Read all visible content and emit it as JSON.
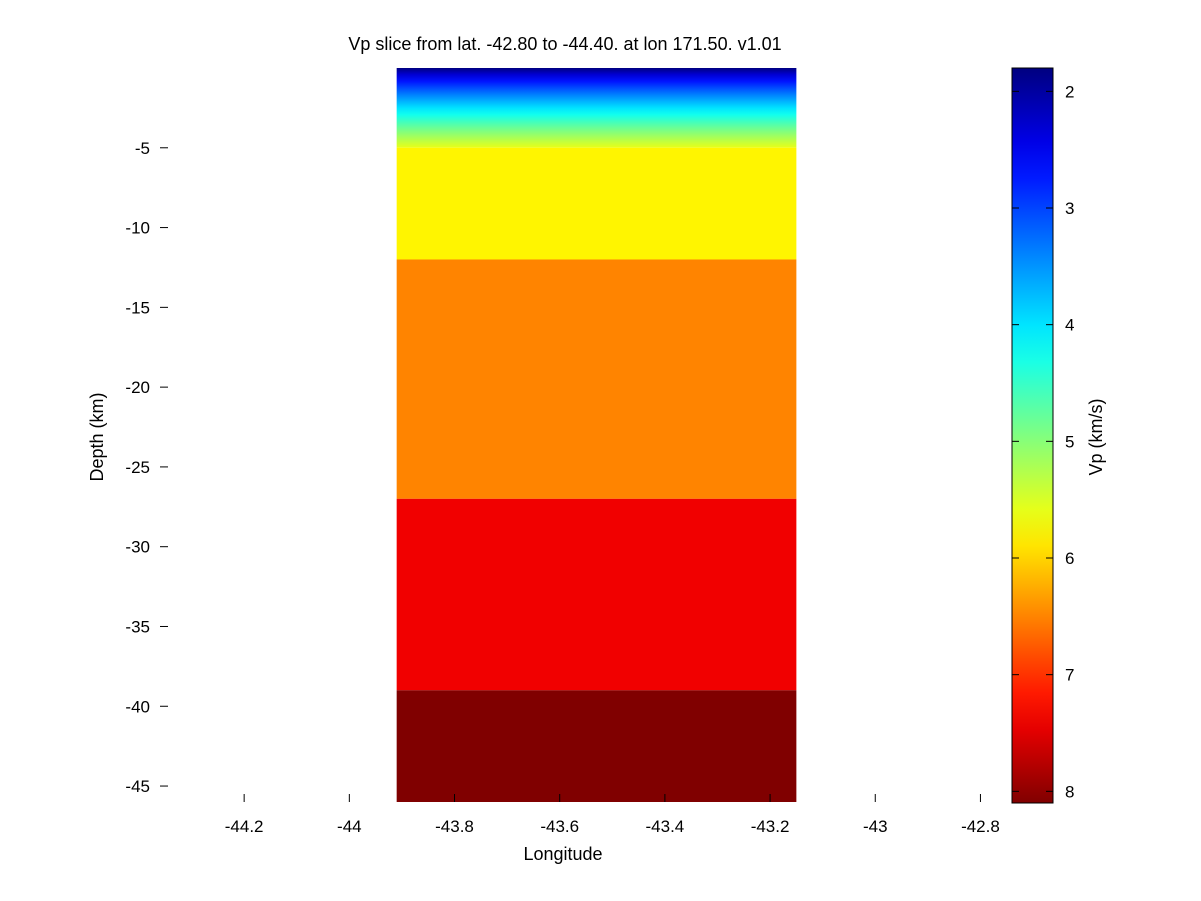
{
  "chart_data": {
    "type": "heatmap",
    "title": "Vp slice from lat. -42.80 to -44.40. at lon 171.50. v1.01",
    "xlabel": "Longitude",
    "ylabel": "Depth (km)",
    "xlim": [
      -44.36,
      -42.74
    ],
    "ylim": [
      -46,
      0
    ],
    "xticks": [
      -44.2,
      -44,
      -43.8,
      -43.6,
      -43.4,
      -43.2,
      -43,
      -42.8
    ],
    "xtick_labels": [
      "-44.2",
      "-44",
      "-43.8",
      "-43.6",
      "-43.4",
      "-43.2",
      "-43",
      "-42.8"
    ],
    "yticks": [
      -5,
      -10,
      -15,
      -20,
      -25,
      -30,
      -35,
      -40,
      -45
    ],
    "ytick_labels": [
      "-5",
      "-10",
      "-15",
      "-20",
      "-25",
      "-30",
      "-35",
      "-40",
      "-45"
    ],
    "data_x_range": [
      -43.91,
      -43.15
    ],
    "layers": [
      {
        "top": 0,
        "bottom": -5,
        "vp_top": 1.8,
        "vp_bottom": 5.6,
        "gradient": true
      },
      {
        "top": -5,
        "bottom": -12,
        "vp": 5.8
      },
      {
        "top": -12,
        "bottom": -27,
        "vp": 6.5
      },
      {
        "top": -27,
        "bottom": -39,
        "vp": 7.4
      },
      {
        "top": -39,
        "bottom": -46,
        "vp": 8.1
      }
    ],
    "colorbar": {
      "label": "Vp (km/s)",
      "range": [
        1.8,
        8.1
      ],
      "reversed": true,
      "colormap": "jet",
      "ticks": [
        2,
        3,
        4,
        5,
        6,
        7,
        8
      ],
      "tick_labels": [
        "2",
        "3",
        "4",
        "5",
        "6",
        "7",
        "8"
      ]
    },
    "grid": false
  }
}
